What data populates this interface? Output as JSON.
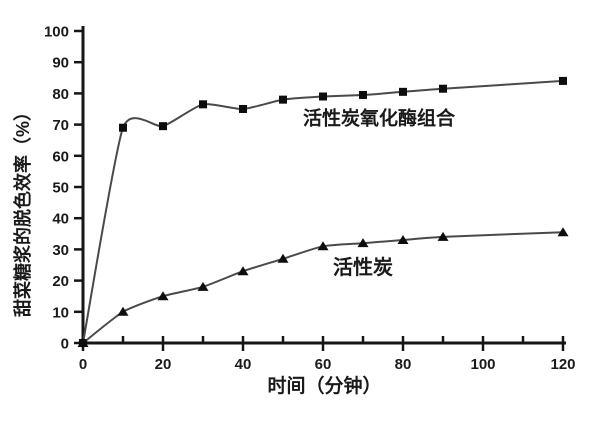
{
  "chart_data": {
    "type": "line",
    "title": "",
    "xlabel": "时间（分钟）",
    "ylabel": "甜菜糖浆的脱色效率（%）",
    "x": [
      0,
      10,
      20,
      30,
      40,
      50,
      60,
      70,
      80,
      90,
      120
    ],
    "series": [
      {
        "name": "活性炭氧化酶组合",
        "marker": "square",
        "values": [
          0,
          69,
          69.5,
          76.5,
          75,
          78,
          79,
          79.5,
          80.5,
          81.5,
          84
        ]
      },
      {
        "name": "活性炭",
        "marker": "triangle",
        "values": [
          0,
          10,
          15,
          18,
          23,
          27,
          31,
          32,
          33,
          34,
          35.5
        ]
      }
    ],
    "xlim": [
      0,
      120
    ],
    "ylim": [
      0,
      100
    ],
    "xticks_major": [
      0,
      20,
      40,
      60,
      80,
      100,
      120
    ],
    "xticks_minor": [
      10,
      30,
      50,
      70,
      90,
      110
    ],
    "yticks": [
      0,
      10,
      20,
      30,
      40,
      50,
      60,
      70,
      80,
      90,
      100
    ],
    "grid": false,
    "legend_position": "inline-annotations",
    "annotations": [
      {
        "text": "活性炭氧化酶组合",
        "x": 74,
        "y": 72
      },
      {
        "text": "活性炭",
        "x": 70,
        "y": 24
      }
    ],
    "colors": {
      "axis": "#161616",
      "line": "#4a4a4a",
      "marker": "#0d0d0d",
      "text": "#1a1a1a"
    }
  }
}
